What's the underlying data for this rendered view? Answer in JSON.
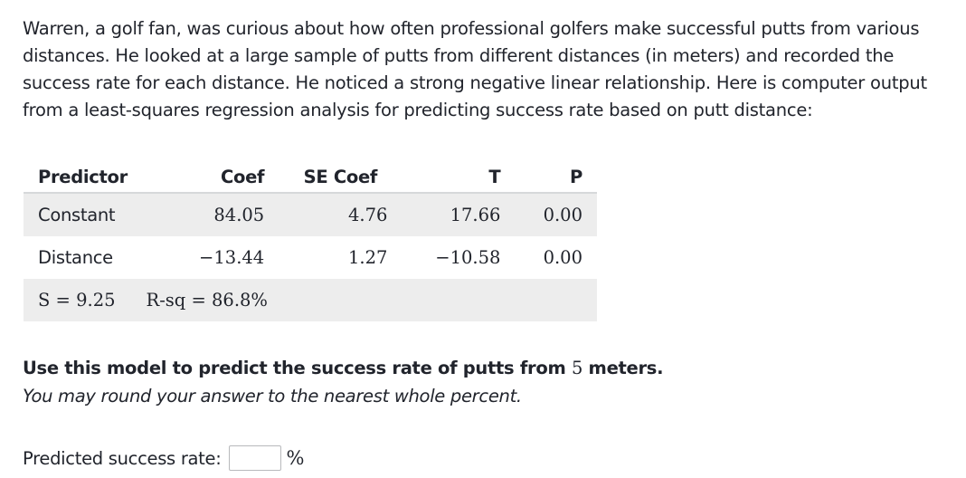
{
  "problem": {
    "intro": "Warren, a golf fan, was curious about how often professional golfers make successful putts from various distances. He looked at a large sample of putts from different distances (in meters) and recorded the success rate for each distance. He noticed a strong negative linear relationship. Here is computer output from a least-squares regression analysis for predicting success rate based on putt distance:"
  },
  "table": {
    "headers": [
      "Predictor",
      "Coef",
      "SE Coef",
      "T",
      "P"
    ],
    "rows": [
      {
        "predictor": "Constant",
        "coef": "84.05",
        "se_coef": "4.76",
        "t": "17.66",
        "p": "0.00"
      },
      {
        "predictor": "Distance",
        "coef": "−13.44",
        "se_coef": "1.27",
        "t": "−10.58",
        "p": "0.00"
      }
    ],
    "summary": {
      "s": "S = 9.25",
      "rsq": "R-sq = 86.8%"
    }
  },
  "question": {
    "prompt_before": "Use this model to predict the success rate of putts from ",
    "prompt_value": "5",
    "prompt_after": " meters.",
    "hint": "You may round your answer to the nearest whole percent."
  },
  "answer": {
    "label": "Predicted success rate:",
    "value": "",
    "unit": "%"
  }
}
